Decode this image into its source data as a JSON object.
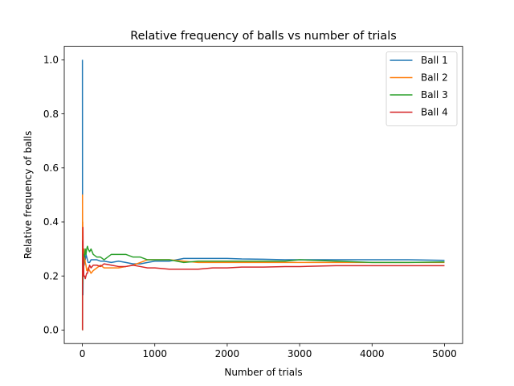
{
  "chart_data": {
    "type": "line",
    "title": "Relative frequency of balls vs number of trials",
    "xlabel": "Number of trials",
    "ylabel": "Relative frequency of balls",
    "xlim": [
      -250,
      5250
    ],
    "ylim": [
      -0.05,
      1.05
    ],
    "xticks": [
      0,
      1000,
      2000,
      3000,
      4000,
      5000
    ],
    "yticks": [
      0.0,
      0.2,
      0.4,
      0.6,
      0.8,
      1.0
    ],
    "grid": false,
    "legend_position": "top-right",
    "series": [
      {
        "name": "Ball 1",
        "color": "#1f77b4",
        "x": [
          1,
          2,
          3,
          4,
          5,
          6,
          8,
          10,
          12,
          15,
          20,
          25,
          30,
          40,
          50,
          60,
          70,
          80,
          100,
          120,
          150,
          200,
          250,
          300,
          400,
          500,
          600,
          700,
          800,
          900,
          1000,
          1200,
          1400,
          1600,
          1800,
          2000,
          2200,
          2500,
          2800,
          3000,
          3500,
          4000,
          4500,
          5000
        ],
        "values": [
          1.0,
          0.5,
          0.33,
          0.25,
          0.2,
          0.17,
          0.13,
          0.2,
          0.25,
          0.27,
          0.25,
          0.24,
          0.27,
          0.26,
          0.28,
          0.27,
          0.26,
          0.25,
          0.25,
          0.26,
          0.26,
          0.26,
          0.255,
          0.255,
          0.25,
          0.255,
          0.25,
          0.245,
          0.245,
          0.25,
          0.255,
          0.255,
          0.265,
          0.265,
          0.265,
          0.265,
          0.263,
          0.262,
          0.26,
          0.26,
          0.26,
          0.26,
          0.26,
          0.258
        ]
      },
      {
        "name": "Ball 2",
        "color": "#ff7f0e",
        "x": [
          1,
          2,
          3,
          4,
          5,
          6,
          8,
          10,
          12,
          15,
          20,
          25,
          30,
          40,
          50,
          60,
          70,
          80,
          100,
          120,
          150,
          200,
          250,
          300,
          400,
          500,
          600,
          700,
          800,
          900,
          1000,
          1200,
          1400,
          1600,
          1800,
          2000,
          2200,
          2500,
          2800,
          3000,
          3500,
          4000,
          4500,
          5000
        ],
        "values": [
          0.0,
          0.5,
          0.33,
          0.25,
          0.4,
          0.33,
          0.25,
          0.2,
          0.25,
          0.27,
          0.3,
          0.28,
          0.27,
          0.25,
          0.24,
          0.22,
          0.22,
          0.23,
          0.22,
          0.21,
          0.22,
          0.23,
          0.24,
          0.23,
          0.23,
          0.23,
          0.235,
          0.24,
          0.25,
          0.26,
          0.26,
          0.26,
          0.255,
          0.25,
          0.25,
          0.25,
          0.25,
          0.25,
          0.25,
          0.25,
          0.25,
          0.25,
          0.25,
          0.25
        ]
      },
      {
        "name": "Ball 3",
        "color": "#2ca02c",
        "x": [
          1,
          2,
          3,
          4,
          5,
          6,
          8,
          10,
          12,
          15,
          20,
          25,
          30,
          40,
          50,
          60,
          70,
          80,
          100,
          120,
          150,
          200,
          250,
          300,
          400,
          500,
          600,
          700,
          800,
          900,
          1000,
          1200,
          1400,
          1600,
          1800,
          2000,
          2200,
          2500,
          2800,
          3000,
          3500,
          4000,
          4500,
          5000
        ],
        "values": [
          0.0,
          0.0,
          0.0,
          0.25,
          0.2,
          0.17,
          0.25,
          0.3,
          0.25,
          0.2,
          0.25,
          0.28,
          0.27,
          0.3,
          0.28,
          0.3,
          0.31,
          0.3,
          0.29,
          0.3,
          0.28,
          0.27,
          0.27,
          0.26,
          0.28,
          0.28,
          0.28,
          0.27,
          0.27,
          0.26,
          0.26,
          0.26,
          0.25,
          0.255,
          0.255,
          0.255,
          0.255,
          0.255,
          0.255,
          0.26,
          0.255,
          0.25,
          0.25,
          0.252
        ]
      },
      {
        "name": "Ball 4",
        "color": "#d62728",
        "x": [
          1,
          2,
          3,
          4,
          5,
          6,
          8,
          10,
          12,
          15,
          20,
          25,
          30,
          40,
          50,
          60,
          70,
          80,
          100,
          120,
          150,
          200,
          250,
          300,
          400,
          500,
          600,
          700,
          800,
          900,
          1000,
          1200,
          1400,
          1600,
          1800,
          2000,
          2200,
          2500,
          2800,
          3000,
          3500,
          4000,
          4500,
          5000
        ],
        "values": [
          0.0,
          0.0,
          0.33,
          0.25,
          0.2,
          0.33,
          0.38,
          0.3,
          0.25,
          0.27,
          0.2,
          0.2,
          0.2,
          0.19,
          0.2,
          0.21,
          0.21,
          0.22,
          0.24,
          0.23,
          0.24,
          0.24,
          0.235,
          0.245,
          0.24,
          0.235,
          0.235,
          0.24,
          0.235,
          0.23,
          0.23,
          0.225,
          0.225,
          0.225,
          0.23,
          0.23,
          0.233,
          0.233,
          0.235,
          0.235,
          0.238,
          0.238,
          0.238,
          0.238
        ]
      }
    ]
  }
}
